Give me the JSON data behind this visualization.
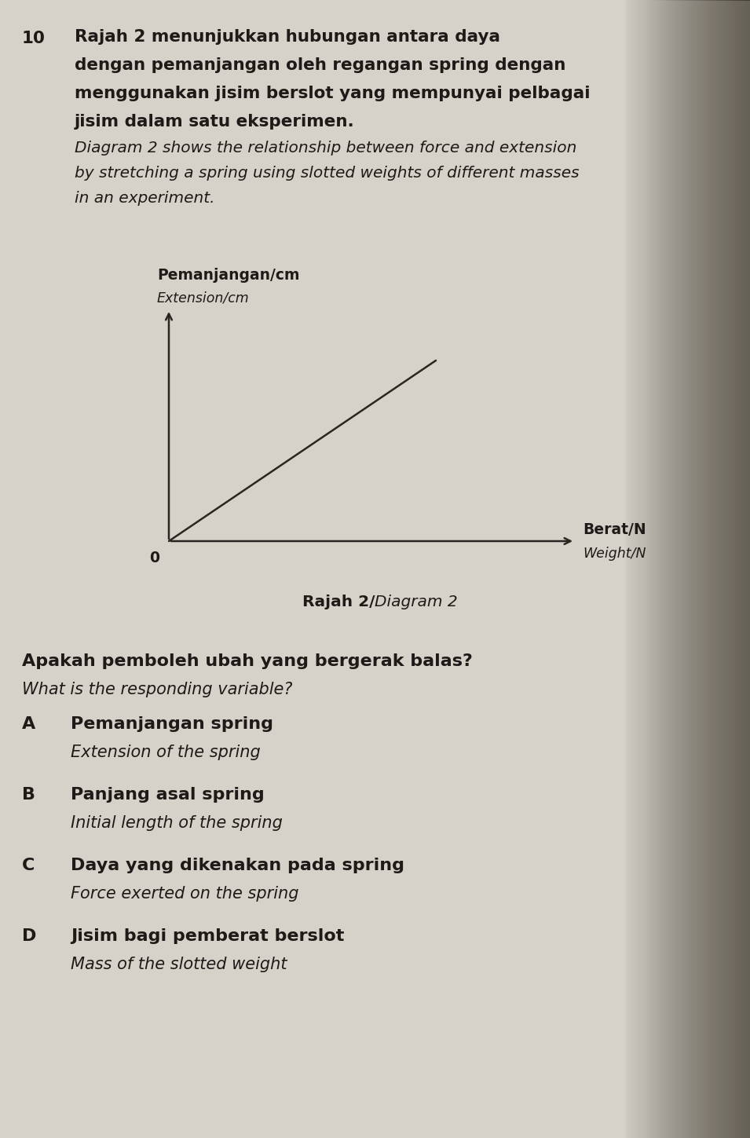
{
  "background_color": "#c8c4bc",
  "page_color": "#d6d2ca",
  "text_color": "#1e1a18",
  "line_color": "#2a2520",
  "question_number": "10",
  "q1_malay_lines": [
    "Rajah 2 menunjukkan hubungan antara daya",
    "dengan pemanjangan oleh regangan spring dengan",
    "menggunakan jisim berslot yang mempunyai pelbagai",
    "jisim dalam satu eksperimen."
  ],
  "q1_english_lines": [
    "Diagram 2 shows the relationship between force and extension",
    "by stretching a spring using slotted weights of different masses",
    "in an experiment."
  ],
  "ylabel_malay": "Pemanjangan/cm",
  "ylabel_english": "Extension/cm",
  "xlabel_malay": "Berat/N",
  "xlabel_english": "Weight/N",
  "origin_label": "0",
  "diagram_caption_roman": "Rajah 2/",
  "diagram_caption_italic": "Diagram 2",
  "question2_malay": "Apakah pemboleh ubah yang bergerak balas?",
  "question2_english": "What is the responding variable?",
  "options": [
    {
      "letter": "A",
      "malay": "Pemanjangan spring",
      "english": "Extension of the spring"
    },
    {
      "letter": "B",
      "malay": "Panjang asal spring",
      "english": "Initial length of the spring"
    },
    {
      "letter": "C",
      "malay": "Daya yang dikenakan pada spring",
      "english": "Force exerted on the spring"
    },
    {
      "letter": "D",
      "malay": "Jisim bagi pemberat berslot",
      "english": "Mass of the slotted weight"
    }
  ],
  "fs_q1": 15.5,
  "fs_q1_eng": 14.5,
  "fs_axis_label": 13.5,
  "fs_caption": 14.5,
  "fs_q2": 16.0,
  "fs_q2_eng": 15.0,
  "fs_opt": 16.0,
  "fs_opt_eng": 15.0
}
